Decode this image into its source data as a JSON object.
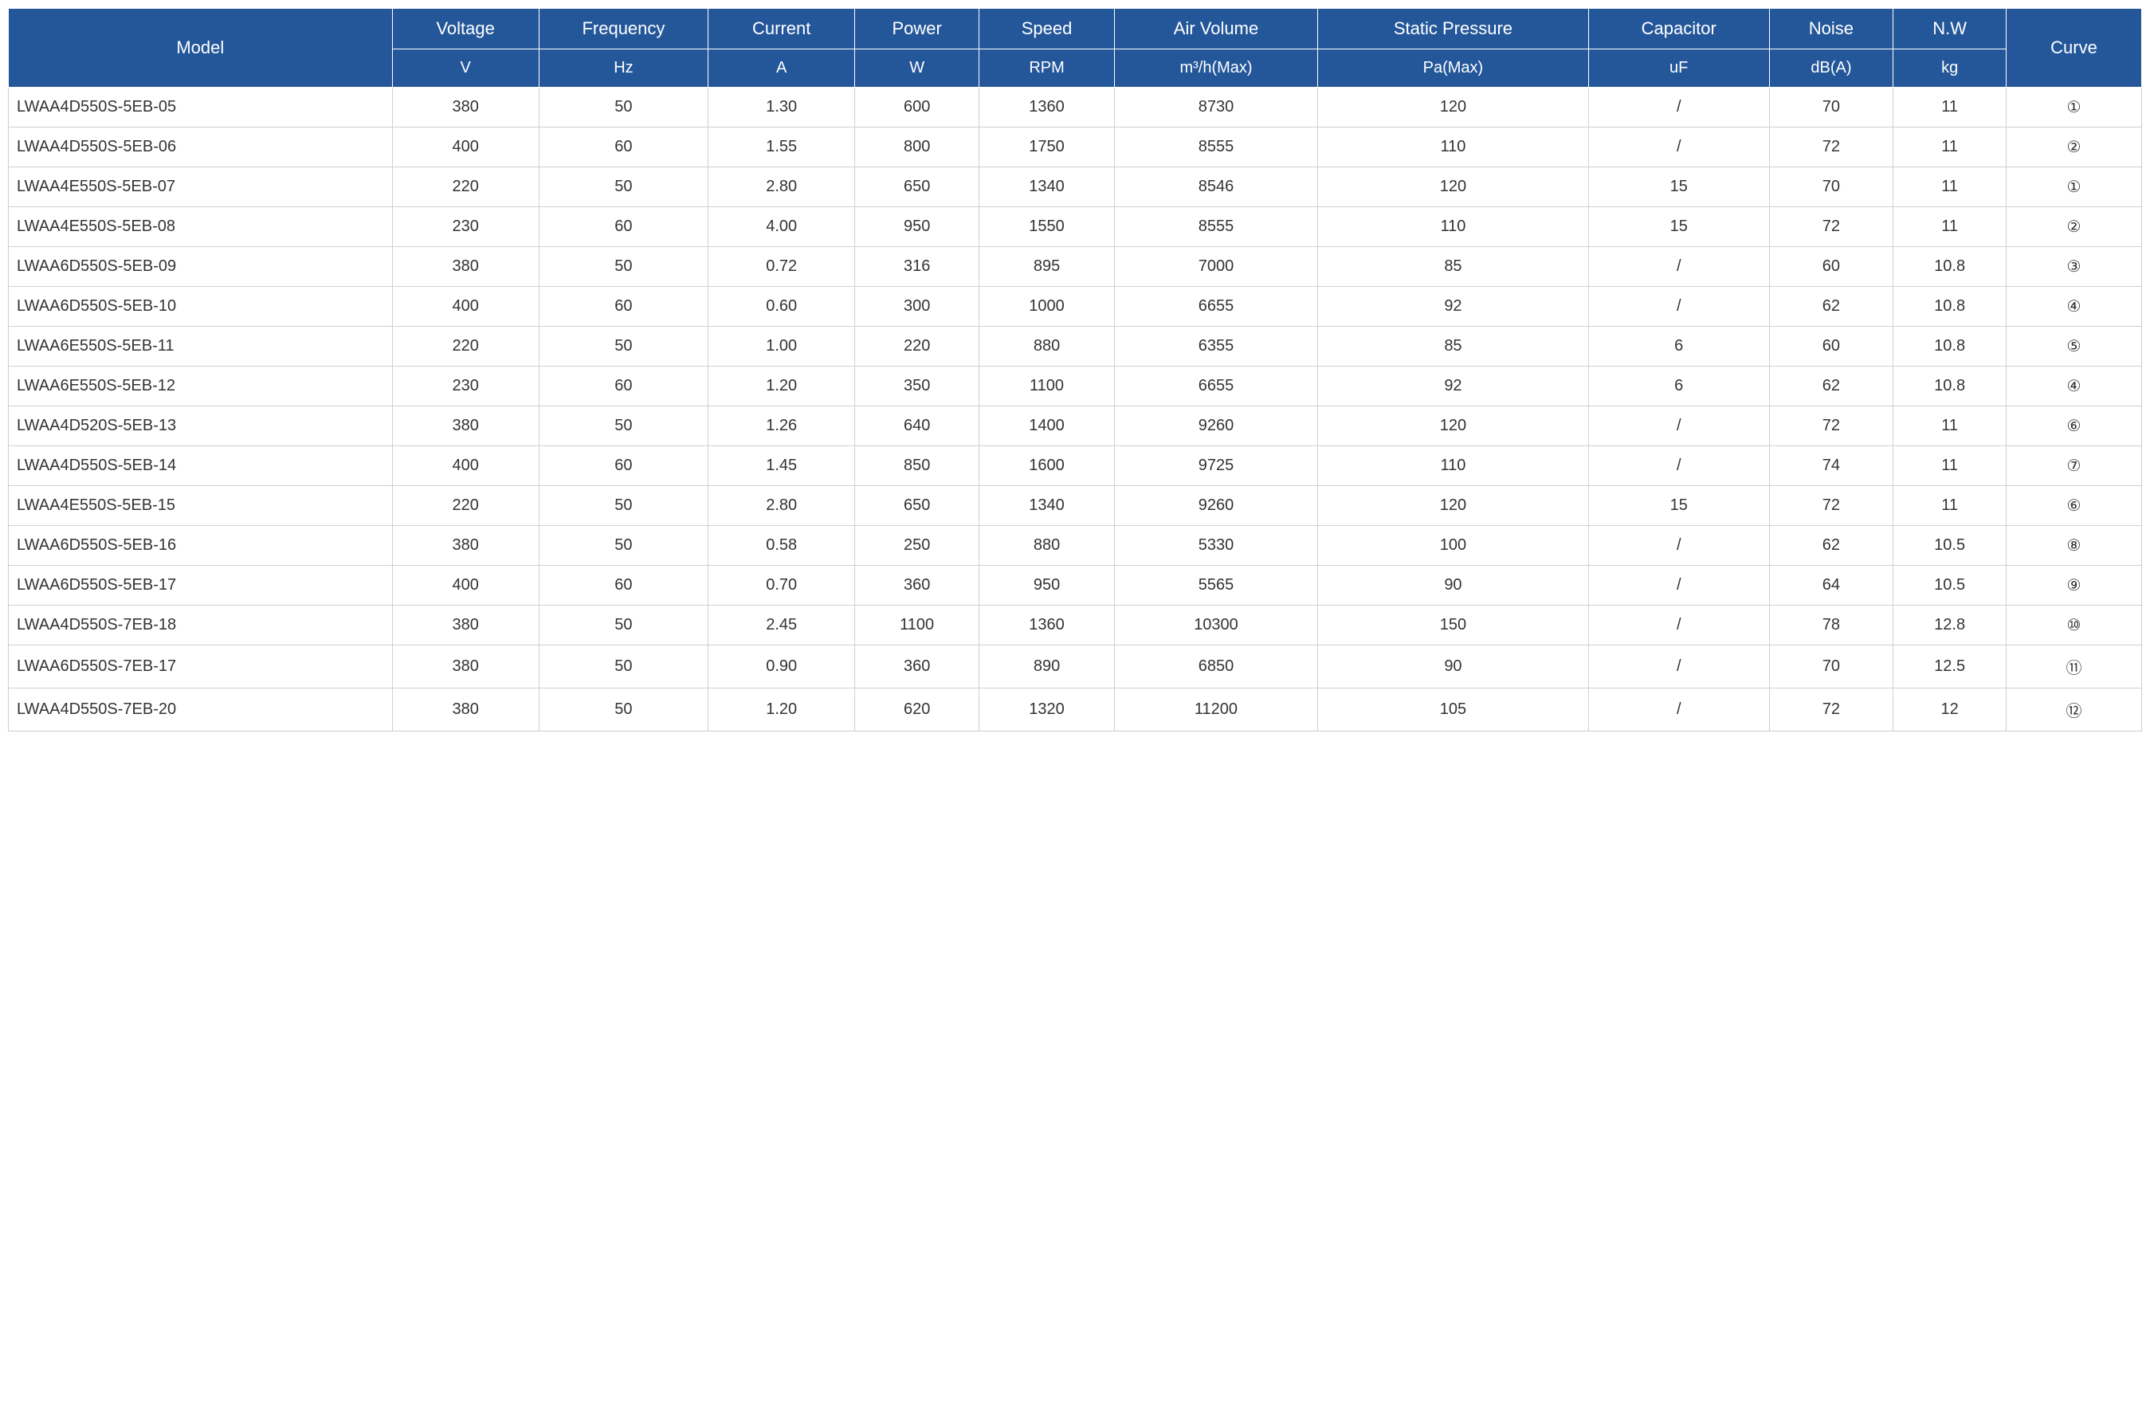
{
  "table": {
    "header_bg": "#24579a",
    "header_fg": "#ffffff",
    "body_fg": "#333333",
    "body_bg": "#ffffff",
    "border_color": "#d0d0d0",
    "font_family": "Arial, sans-serif",
    "header_fontsize_top": 22,
    "header_fontsize_sub": 20,
    "body_fontsize": 20,
    "columns": [
      {
        "key": "model",
        "label": "Model",
        "unit": "",
        "width": "17%",
        "align_body": "left"
      },
      {
        "key": "voltage",
        "label": "Voltage",
        "unit": "V",
        "width": "6.5%",
        "align_body": "center"
      },
      {
        "key": "frequency",
        "label": "Frequency",
        "unit": "Hz",
        "width": "7.5%",
        "align_body": "center"
      },
      {
        "key": "current",
        "label": "Current",
        "unit": "A",
        "width": "6.5%",
        "align_body": "center"
      },
      {
        "key": "power",
        "label": "Power",
        "unit": "W",
        "width": "5.5%",
        "align_body": "center"
      },
      {
        "key": "speed",
        "label": "Speed",
        "unit": "RPM",
        "width": "6%",
        "align_body": "center"
      },
      {
        "key": "air_volume",
        "label": "Air Volume",
        "unit": "m³/h(Max)",
        "width": "9%",
        "align_body": "center"
      },
      {
        "key": "static_pressure",
        "label": "Static Pressure",
        "unit": "Pa(Max)",
        "width": "12%",
        "align_body": "center"
      },
      {
        "key": "capacitor",
        "label": "Capacitor",
        "unit": "uF",
        "width": "8%",
        "align_body": "center"
      },
      {
        "key": "noise",
        "label": "Noise",
        "unit": "dB(A)",
        "width": "5.5%",
        "align_body": "center"
      },
      {
        "key": "nw",
        "label": "N.W",
        "unit": "kg",
        "width": "5%",
        "align_body": "center"
      },
      {
        "key": "curve",
        "label": "Curve",
        "unit": "",
        "width": "6%",
        "align_body": "center"
      }
    ],
    "rows": [
      {
        "model": "LWAA4D550S-5EB-05",
        "voltage": "380",
        "frequency": "50",
        "current": "1.30",
        "power": "600",
        "speed": "1360",
        "air_volume": "8730",
        "static_pressure": "120",
        "capacitor": "/",
        "noise": "70",
        "nw": "11",
        "curve": "①"
      },
      {
        "model": "LWAA4D550S-5EB-06",
        "voltage": "400",
        "frequency": "60",
        "current": "1.55",
        "power": "800",
        "speed": "1750",
        "air_volume": "8555",
        "static_pressure": "110",
        "capacitor": "/",
        "noise": "72",
        "nw": "11",
        "curve": "②"
      },
      {
        "model": "LWAA4E550S-5EB-07",
        "voltage": "220",
        "frequency": "50",
        "current": "2.80",
        "power": "650",
        "speed": "1340",
        "air_volume": "8546",
        "static_pressure": "120",
        "capacitor": "15",
        "noise": "70",
        "nw": "11",
        "curve": "①"
      },
      {
        "model": "LWAA4E550S-5EB-08",
        "voltage": "230",
        "frequency": "60",
        "current": "4.00",
        "power": "950",
        "speed": "1550",
        "air_volume": "8555",
        "static_pressure": "110",
        "capacitor": "15",
        "noise": "72",
        "nw": "11",
        "curve": "②"
      },
      {
        "model": "LWAA6D550S-5EB-09",
        "voltage": "380",
        "frequency": "50",
        "current": "0.72",
        "power": "316",
        "speed": "895",
        "air_volume": "7000",
        "static_pressure": "85",
        "capacitor": "/",
        "noise": "60",
        "nw": "10.8",
        "curve": "③"
      },
      {
        "model": "LWAA6D550S-5EB-10",
        "voltage": "400",
        "frequency": "60",
        "current": "0.60",
        "power": "300",
        "speed": "1000",
        "air_volume": "6655",
        "static_pressure": "92",
        "capacitor": "/",
        "noise": "62",
        "nw": "10.8",
        "curve": "④"
      },
      {
        "model": "LWAA6E550S-5EB-11",
        "voltage": "220",
        "frequency": "50",
        "current": "1.00",
        "power": "220",
        "speed": "880",
        "air_volume": "6355",
        "static_pressure": "85",
        "capacitor": "6",
        "noise": "60",
        "nw": "10.8",
        "curve": "⑤"
      },
      {
        "model": "LWAA6E550S-5EB-12",
        "voltage": "230",
        "frequency": "60",
        "current": "1.20",
        "power": "350",
        "speed": "1100",
        "air_volume": "6655",
        "static_pressure": "92",
        "capacitor": "6",
        "noise": "62",
        "nw": "10.8",
        "curve": "④"
      },
      {
        "model": "LWAA4D520S-5EB-13",
        "voltage": "380",
        "frequency": "50",
        "current": "1.26",
        "power": "640",
        "speed": "1400",
        "air_volume": "9260",
        "static_pressure": "120",
        "capacitor": "/",
        "noise": "72",
        "nw": "11",
        "curve": "⑥"
      },
      {
        "model": "LWAA4D550S-5EB-14",
        "voltage": "400",
        "frequency": "60",
        "current": "1.45",
        "power": "850",
        "speed": "1600",
        "air_volume": "9725",
        "static_pressure": "110",
        "capacitor": "/",
        "noise": "74",
        "nw": "11",
        "curve": "⑦"
      },
      {
        "model": "LWAA4E550S-5EB-15",
        "voltage": "220",
        "frequency": "50",
        "current": "2.80",
        "power": "650",
        "speed": "1340",
        "air_volume": "9260",
        "static_pressure": "120",
        "capacitor": "15",
        "noise": "72",
        "nw": "11",
        "curve": "⑥"
      },
      {
        "model": "LWAA6D550S-5EB-16",
        "voltage": "380",
        "frequency": "50",
        "current": "0.58",
        "power": "250",
        "speed": "880",
        "air_volume": "5330",
        "static_pressure": "100",
        "capacitor": "/",
        "noise": "62",
        "nw": "10.5",
        "curve": "⑧"
      },
      {
        "model": "LWAA6D550S-5EB-17",
        "voltage": "400",
        "frequency": "60",
        "current": "0.70",
        "power": "360",
        "speed": "950",
        "air_volume": "5565",
        "static_pressure": "90",
        "capacitor": "/",
        "noise": "64",
        "nw": "10.5",
        "curve": "⑨"
      },
      {
        "model": "LWAA4D550S-7EB-18",
        "voltage": "380",
        "frequency": "50",
        "current": "2.45",
        "power": "1100",
        "speed": "1360",
        "air_volume": "10300",
        "static_pressure": "150",
        "capacitor": "/",
        "noise": "78",
        "nw": "12.8",
        "curve": "⑩"
      },
      {
        "model": "LWAA6D550S-7EB-17",
        "voltage": "380",
        "frequency": "50",
        "current": "0.90",
        "power": "360",
        "speed": "890",
        "air_volume": "6850",
        "static_pressure": "90",
        "capacitor": "/",
        "noise": "70",
        "nw": "12.5",
        "curve": "⑪"
      },
      {
        "model": "LWAA4D550S-7EB-20",
        "voltage": "380",
        "frequency": "50",
        "current": "1.20",
        "power": "620",
        "speed": "1320",
        "air_volume": "11200",
        "static_pressure": "105",
        "capacitor": "/",
        "noise": "72",
        "nw": "12",
        "curve": "⑫"
      }
    ]
  }
}
